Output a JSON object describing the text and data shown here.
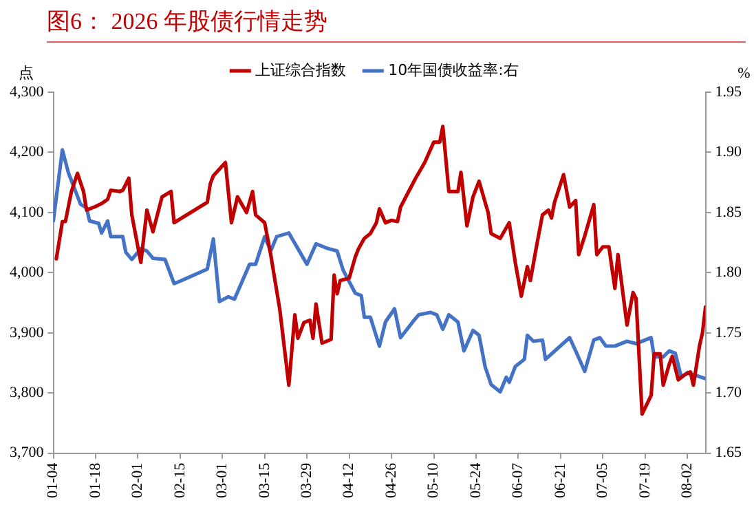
{
  "chart_data": {
    "type": "line",
    "title": "图6：  2026 年股债行情走势",
    "ylabel": "点",
    "y2label": "%",
    "legend": "top",
    "marker": "none",
    "line_style": "solid",
    "grid": false,
    "xlim": [
      "2026-01-04",
      "2026-08-08"
    ],
    "xticks": [
      {
        "value": "2026-01-04",
        "label": "01-04"
      },
      {
        "value": "2026-01-18",
        "label": "01-18"
      },
      {
        "value": "2026-02-01",
        "label": "02-01"
      },
      {
        "value": "2026-02-15",
        "label": "02-15"
      },
      {
        "value": "2026-03-01",
        "label": "03-01"
      },
      {
        "value": "2026-03-15",
        "label": "03-15"
      },
      {
        "value": "2026-03-29",
        "label": "03-29"
      },
      {
        "value": "2026-04-12",
        "label": "04-12"
      },
      {
        "value": "2026-04-26",
        "label": "04-26"
      },
      {
        "value": "2026-05-10",
        "label": "05-10"
      },
      {
        "value": "2026-05-24",
        "label": "05-24"
      },
      {
        "value": "2026-06-07",
        "label": "06-07"
      },
      {
        "value": "2026-06-21",
        "label": "06-21"
      },
      {
        "value": "2026-07-05",
        "label": "07-05"
      },
      {
        "value": "2026-07-19",
        "label": "07-19"
      },
      {
        "value": "2026-08-02",
        "label": "08-02"
      }
    ],
    "ylim": [
      3700,
      4300
    ],
    "yticks": [
      {
        "value": 3700,
        "label": "3,700"
      },
      {
        "value": 3800,
        "label": "3,800"
      },
      {
        "value": 3900,
        "label": "3,900"
      },
      {
        "value": 4000,
        "label": "4,000"
      },
      {
        "value": 4100,
        "label": "4,100"
      },
      {
        "value": 4200,
        "label": "4,200"
      },
      {
        "value": 4300,
        "label": "4,300"
      }
    ],
    "y2lim": [
      1.65,
      1.95
    ],
    "y2ticks": [
      {
        "value": 1.65,
        "label": "1.65"
      },
      {
        "value": 1.7,
        "label": "1.70"
      },
      {
        "value": 1.75,
        "label": "1.75"
      },
      {
        "value": 1.8,
        "label": "1.80"
      },
      {
        "value": 1.85,
        "label": "1.85"
      },
      {
        "value": 1.9,
        "label": "1.90"
      },
      {
        "value": 1.95,
        "label": "1.95"
      }
    ],
    "series": [
      {
        "name": "上证综合指数",
        "color": "#c00000",
        "x": [
          "2026-01-05",
          "2026-01-07",
          "2026-01-08",
          "2026-01-10",
          "2026-01-12",
          "2026-01-14",
          "2026-01-15",
          "2026-01-18",
          "2026-01-20",
          "2026-01-22",
          "2026-01-23",
          "2026-01-26",
          "2026-01-27",
          "2026-01-29",
          "2026-01-30",
          "2026-02-02",
          "2026-02-04",
          "2026-02-06",
          "2026-02-09",
          "2026-02-12",
          "2026-02-13",
          "2026-02-24",
          "2026-02-25",
          "2026-02-26",
          "2026-03-02",
          "2026-03-04",
          "2026-03-06",
          "2026-03-09",
          "2026-03-11",
          "2026-03-12",
          "2026-03-15",
          "2026-03-17",
          "2026-03-20",
          "2026-03-23",
          "2026-03-25",
          "2026-03-26",
          "2026-03-28",
          "2026-03-30",
          "2026-03-31",
          "2026-04-01",
          "2026-04-03",
          "2026-04-06",
          "2026-04-07",
          "2026-04-08",
          "2026-04-09",
          "2026-04-12",
          "2026-04-14",
          "2026-04-15",
          "2026-04-17",
          "2026-04-19",
          "2026-04-21",
          "2026-04-22",
          "2026-04-24",
          "2026-04-26",
          "2026-04-28",
          "2026-04-29",
          "2026-05-04",
          "2026-05-07",
          "2026-05-10",
          "2026-05-12",
          "2026-05-13",
          "2026-05-15",
          "2026-05-18",
          "2026-05-19",
          "2026-05-21",
          "2026-05-23",
          "2026-05-25",
          "2026-05-28",
          "2026-05-29",
          "2026-06-01",
          "2026-06-04",
          "2026-06-06",
          "2026-06-08",
          "2026-06-10",
          "2026-06-11",
          "2026-06-13",
          "2026-06-15",
          "2026-06-17",
          "2026-06-18",
          "2026-06-19",
          "2026-06-22",
          "2026-06-24",
          "2026-06-26",
          "2026-06-27",
          "2026-06-29",
          "2026-07-02",
          "2026-07-03",
          "2026-07-05",
          "2026-07-07",
          "2026-07-09",
          "2026-07-10",
          "2026-07-13",
          "2026-07-15",
          "2026-07-16",
          "2026-07-18",
          "2026-07-21",
          "2026-07-22",
          "2026-07-24",
          "2026-07-25",
          "2026-07-27",
          "2026-07-28",
          "2026-07-30",
          "2026-08-01",
          "2026-08-03",
          "2026-08-04",
          "2026-08-06",
          "2026-08-07",
          "2026-08-08"
        ],
        "values": [
          4023,
          4085,
          4085,
          4135,
          4165,
          4135,
          4104,
          4110,
          4115,
          4122,
          4137,
          4135,
          4137,
          4157,
          4096,
          4017,
          4104,
          4068,
          4126,
          4135,
          4083,
          4117,
          4148,
          4161,
          4183,
          4083,
          4126,
          4100,
          4135,
          4096,
          4083,
          4030,
          3939,
          3813,
          3930,
          3891,
          3917,
          3921,
          3891,
          3948,
          3883,
          3889,
          3996,
          3965,
          3987,
          3991,
          4026,
          4039,
          4057,
          4065,
          4083,
          4106,
          4083,
          4087,
          4085,
          4109,
          4157,
          4183,
          4217,
          4217,
          4243,
          4135,
          4135,
          4167,
          4078,
          4126,
          4152,
          4100,
          4065,
          4057,
          4083,
          4017,
          3961,
          4010,
          3987,
          4043,
          4096,
          4104,
          4091,
          4117,
          4163,
          4109,
          4120,
          4030,
          4061,
          4113,
          4030,
          4043,
          4043,
          3974,
          4030,
          3913,
          3967,
          3957,
          3765,
          3796,
          3865,
          3865,
          3813,
          3848,
          3861,
          3822,
          3830,
          3835,
          3813,
          3878,
          3900,
          3943
        ]
      },
      {
        "name": "10年国债收益率:右",
        "color": "#4472c4",
        "axis": "y2",
        "x": [
          "2026-01-04",
          "2026-01-07",
          "2026-01-09",
          "2026-01-13",
          "2026-01-15",
          "2026-01-16",
          "2026-01-19",
          "2026-01-20",
          "2026-01-22",
          "2026-01-23",
          "2026-01-27",
          "2026-01-28",
          "2026-01-30",
          "2026-02-02",
          "2026-02-04",
          "2026-02-06",
          "2026-02-10",
          "2026-02-13",
          "2026-02-15",
          "2026-02-24",
          "2026-02-26",
          "2026-02-28",
          "2026-03-03",
          "2026-03-05",
          "2026-03-10",
          "2026-03-12",
          "2026-03-15",
          "2026-03-17",
          "2026-03-19",
          "2026-03-23",
          "2026-03-29",
          "2026-04-01",
          "2026-04-05",
          "2026-04-08",
          "2026-04-10",
          "2026-04-14",
          "2026-04-16",
          "2026-04-17",
          "2026-04-19",
          "2026-04-22",
          "2026-04-24",
          "2026-04-27",
          "2026-04-29",
          "2026-05-03",
          "2026-05-05",
          "2026-05-09",
          "2026-05-11",
          "2026-05-13",
          "2026-05-15",
          "2026-05-18",
          "2026-05-20",
          "2026-05-23",
          "2026-05-25",
          "2026-05-27",
          "2026-05-29",
          "2026-06-01",
          "2026-06-03",
          "2026-06-04",
          "2026-06-06",
          "2026-06-09",
          "2026-06-10",
          "2026-06-12",
          "2026-06-15",
          "2026-06-16",
          "2026-06-20",
          "2026-06-24",
          "2026-06-26",
          "2026-06-29",
          "2026-07-02",
          "2026-07-04",
          "2026-07-06",
          "2026-07-09",
          "2026-07-13",
          "2026-07-16",
          "2026-07-21",
          "2026-07-22",
          "2026-07-25",
          "2026-07-27",
          "2026-07-29",
          "2026-07-31",
          "2026-08-02",
          "2026-08-03",
          "2026-08-08"
        ],
        "values": [
          1.843,
          1.902,
          1.883,
          1.857,
          1.854,
          1.843,
          1.841,
          1.833,
          1.843,
          1.83,
          1.83,
          1.817,
          1.811,
          1.82,
          1.818,
          1.812,
          1.811,
          1.791,
          1.793,
          1.803,
          1.828,
          1.776,
          1.78,
          1.778,
          1.807,
          1.807,
          1.83,
          1.818,
          1.83,
          1.833,
          1.807,
          1.824,
          1.82,
          1.818,
          1.802,
          1.783,
          1.781,
          1.763,
          1.763,
          1.739,
          1.759,
          1.77,
          1.746,
          1.759,
          1.765,
          1.767,
          1.765,
          1.753,
          1.765,
          1.759,
          1.735,
          1.752,
          1.748,
          1.722,
          1.707,
          1.701,
          1.713,
          1.709,
          1.722,
          1.728,
          1.748,
          1.743,
          1.744,
          1.728,
          1.737,
          1.746,
          1.735,
          1.718,
          1.744,
          1.746,
          1.739,
          1.739,
          1.743,
          1.741,
          1.746,
          1.73,
          1.73,
          1.735,
          1.733,
          1.713,
          1.717,
          1.716,
          1.712
        ]
      }
    ]
  }
}
